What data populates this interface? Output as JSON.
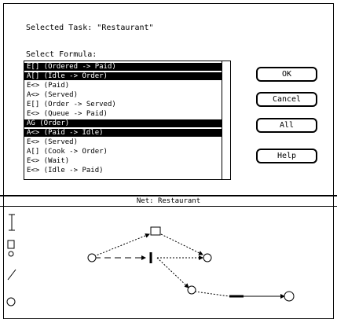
{
  "dialog": {
    "title": "Selected Task: \"Restaurant\"",
    "list_label": "Select Formula:",
    "formulas": [
      "E[] (Ordered -> Paid)",
      "A[] (Idle -> Order)",
      "E<> (Paid)",
      "A<> (Served)",
      "E[] (Order -> Served)",
      "E<> (Queue -> Paid)",
      "AG (Order)",
      "A<> (Paid -> Idle)",
      "E<> (Served)",
      "A[] (Cook -> Order)",
      "E<> (Wait)",
      "E<> (Idle -> Paid)"
    ],
    "selected": [
      0,
      1,
      6,
      7
    ],
    "buttons": [
      "OK",
      "Cancel",
      "All",
      "Help"
    ]
  },
  "net": {
    "title": "Net: Restaurant"
  }
}
